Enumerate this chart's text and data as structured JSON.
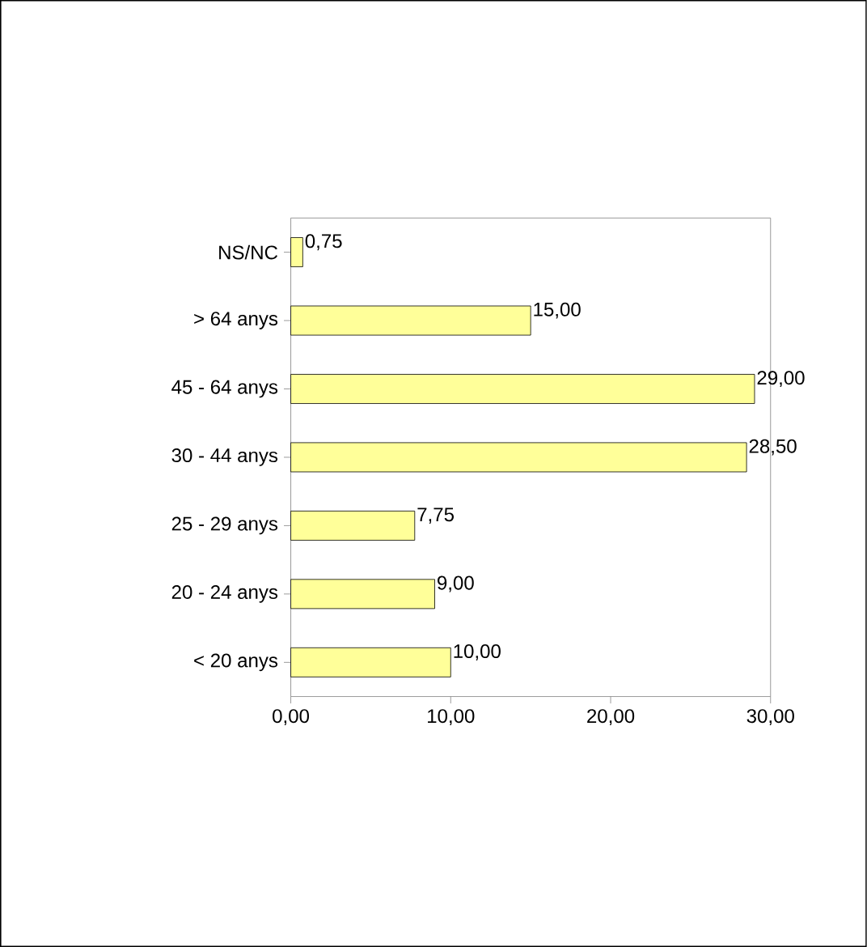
{
  "chart_data": {
    "type": "bar",
    "orientation": "horizontal",
    "categories": [
      "NS/NC",
      "> 64 anys",
      "45 - 64 anys",
      "30 - 44 anys",
      "25 - 29 anys",
      "20 - 24 anys",
      "< 20 anys"
    ],
    "values": [
      0.75,
      15,
      29,
      28.5,
      7.75,
      9,
      10
    ],
    "value_labels": [
      "0,75",
      "15,00",
      "29,00",
      "28,50",
      "7,75",
      "9,00",
      "10,00"
    ],
    "color": "#ffff99",
    "xlim": [
      0,
      30
    ],
    "xticks": [
      {
        "value": 0,
        "label": "0,00"
      },
      {
        "value": 10,
        "label": "10,00"
      },
      {
        "value": 20,
        "label": "20,00"
      },
      {
        "value": 30,
        "label": "30,00"
      }
    ]
  }
}
